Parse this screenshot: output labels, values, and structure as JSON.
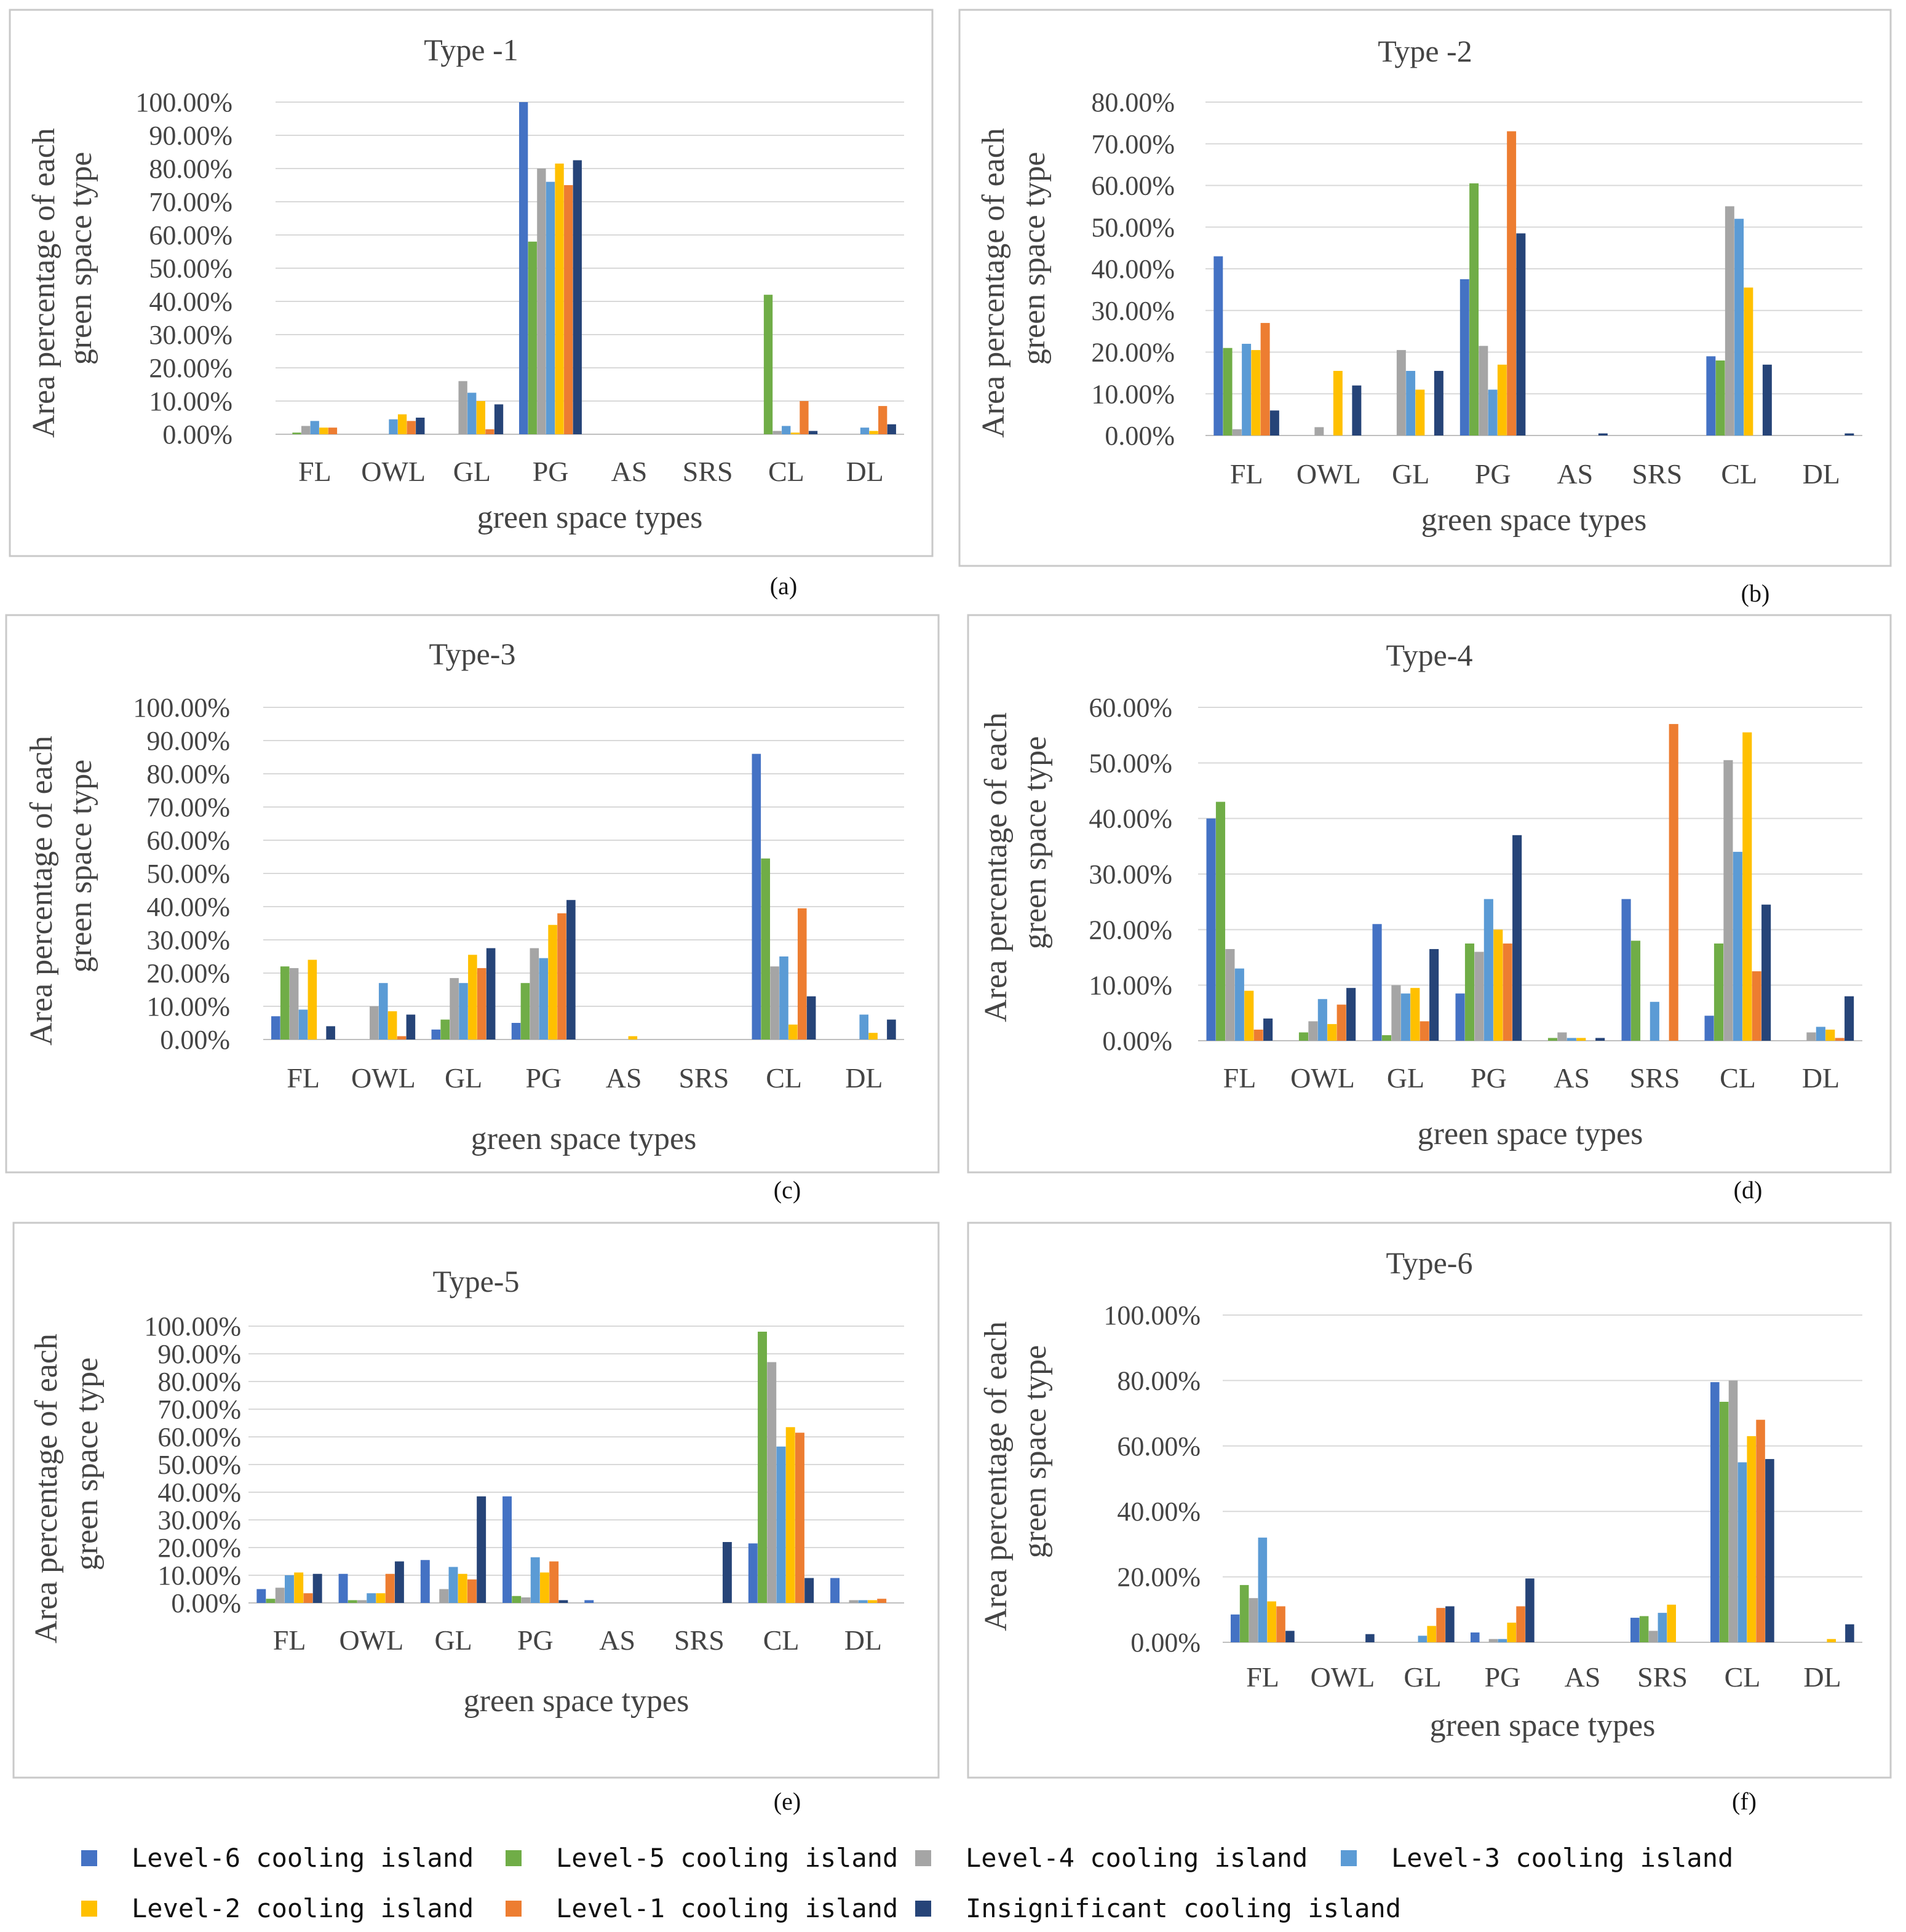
{
  "series": [
    {
      "name": "Level-6 cooling island",
      "color": "#4472C4"
    },
    {
      "name": "Level-5 cooling island",
      "color": "#70AD47"
    },
    {
      "name": "Level-4 cooling island",
      "color": "#A5A5A5"
    },
    {
      "name": "Level-3 cooling island",
      "color": "#5B9BD5"
    },
    {
      "name": "Level-2 cooling island",
      "color": "#FFC000"
    },
    {
      "name": "Level-1 cooling island",
      "color": "#ED7D31"
    },
    {
      "name": "Insignificant cooling island",
      "color": "#264478"
    }
  ],
  "chart_data": [
    {
      "type": "bar",
      "panel_label": "(a)",
      "title": "Type -1",
      "ylabel_line1": "Area percentage of each",
      "ylabel_line2": "green space type",
      "xlabel": "green space types",
      "categories": [
        "FL",
        "OWL",
        "GL",
        "PG",
        "AS",
        "SRS",
        "CL",
        "DL"
      ],
      "ylim": [
        0,
        100
      ],
      "yticks": [
        "0.00%",
        "10.00%",
        "20.00%",
        "30.00%",
        "40.00%",
        "50.00%",
        "60.00%",
        "70.00%",
        "80.00%",
        "90.00%",
        "100.00%"
      ],
      "values": [
        [
          0,
          0,
          0,
          100,
          0,
          0,
          0,
          0
        ],
        [
          0.5,
          0,
          0,
          58,
          0,
          0,
          42,
          0
        ],
        [
          2.5,
          0,
          16,
          80,
          0,
          0,
          1,
          0
        ],
        [
          4,
          4.5,
          12.5,
          76,
          0,
          0,
          2.5,
          2
        ],
        [
          2,
          6,
          10,
          81.5,
          0,
          0,
          0.5,
          1
        ],
        [
          2,
          4,
          1.5,
          75,
          0,
          0,
          10,
          8.5
        ],
        [
          0,
          5,
          9,
          82.5,
          0,
          0,
          1,
          3
        ]
      ]
    },
    {
      "type": "bar",
      "panel_label": "(b)",
      "title": "Type -2",
      "ylabel_line1": "Area percentage of each",
      "ylabel_line2": "green space type",
      "xlabel": "green space types",
      "categories": [
        "FL",
        "OWL",
        "GL",
        "PG",
        "AS",
        "SRS",
        "CL",
        "DL"
      ],
      "ylim": [
        0,
        80
      ],
      "yticks": [
        "0.00%",
        "10.00%",
        "20.00%",
        "30.00%",
        "40.00%",
        "50.00%",
        "60.00%",
        "70.00%",
        "80.00%"
      ],
      "values": [
        [
          43,
          0,
          0,
          37.5,
          0,
          0,
          19,
          0
        ],
        [
          21,
          0,
          0,
          60.5,
          0,
          0,
          18,
          0
        ],
        [
          1.5,
          2,
          20.5,
          21.5,
          0,
          0,
          55,
          0
        ],
        [
          22,
          0,
          15.5,
          11,
          0,
          0,
          52,
          0
        ],
        [
          20.5,
          15.5,
          11,
          17,
          0,
          0,
          35.5,
          0
        ],
        [
          27,
          0,
          0,
          73,
          0,
          0,
          0,
          0
        ],
        [
          6,
          12,
          15.5,
          48.5,
          0.5,
          0,
          17,
          0.5
        ]
      ]
    },
    {
      "type": "bar",
      "panel_label": "(c)",
      "title": "Type-3",
      "ylabel_line1": "Area percentage of each",
      "ylabel_line2": "green space type",
      "xlabel": "green space types",
      "categories": [
        "FL",
        "OWL",
        "GL",
        "PG",
        "AS",
        "SRS",
        "CL",
        "DL"
      ],
      "ylim": [
        0,
        100
      ],
      "yticks": [
        "0.00%",
        "10.00%",
        "20.00%",
        "30.00%",
        "40.00%",
        "50.00%",
        "60.00%",
        "70.00%",
        "80.00%",
        "90.00%",
        "100.00%"
      ],
      "values": [
        [
          7,
          0,
          3,
          5,
          0,
          0,
          86,
          0
        ],
        [
          22,
          0,
          6,
          17,
          0,
          0,
          54.5,
          0
        ],
        [
          21.5,
          10,
          18.5,
          27.5,
          0,
          0,
          22,
          0
        ],
        [
          9,
          17,
          17,
          24.5,
          0,
          0,
          25,
          7.5
        ],
        [
          24,
          8.5,
          25.5,
          34.5,
          1,
          0,
          4.5,
          2
        ],
        [
          0,
          1,
          21.5,
          38,
          0,
          0,
          39.5,
          0
        ],
        [
          4,
          7.5,
          27.5,
          42,
          0,
          0,
          13,
          6
        ]
      ]
    },
    {
      "type": "bar",
      "panel_label": "(d)",
      "title": "Type-4",
      "ylabel_line1": "Area percentage of each",
      "ylabel_line2": "green space type",
      "xlabel": "green space types",
      "categories": [
        "FL",
        "OWL",
        "GL",
        "PG",
        "AS",
        "SRS",
        "CL",
        "DL"
      ],
      "ylim": [
        0,
        60
      ],
      "yticks": [
        "0.00%",
        "10.00%",
        "20.00%",
        "30.00%",
        "40.00%",
        "50.00%",
        "60.00%"
      ],
      "values": [
        [
          40,
          0,
          21,
          8.5,
          0,
          25.5,
          4.5,
          0
        ],
        [
          43,
          1.5,
          1,
          17.5,
          0.5,
          18,
          17.5,
          0
        ],
        [
          16.5,
          3.5,
          10,
          16,
          1.5,
          0,
          50.5,
          1.5
        ],
        [
          13,
          7.5,
          8.5,
          25.5,
          0.5,
          7,
          34,
          2.5
        ],
        [
          9,
          3,
          9.5,
          20,
          0.5,
          0,
          55.5,
          2
        ],
        [
          2,
          6.5,
          3.5,
          17.5,
          0,
          57,
          12.5,
          0.5
        ],
        [
          4,
          9.5,
          16.5,
          37,
          0.5,
          0,
          24.5,
          8
        ]
      ]
    },
    {
      "type": "bar",
      "panel_label": "(e)",
      "title": "Type-5",
      "ylabel_line1": "Area percentage of each",
      "ylabel_line2": "green space type",
      "xlabel": "green space types",
      "categories": [
        "FL",
        "OWL",
        "GL",
        "PG",
        "AS",
        "SRS",
        "CL",
        "DL"
      ],
      "ylim": [
        0,
        100
      ],
      "yticks": [
        "0.00%",
        "10.00%",
        "20.00%",
        "30.00%",
        "40.00%",
        "50.00%",
        "60.00%",
        "70.00%",
        "80.00%",
        "90.00%",
        "100.00%"
      ],
      "values": [
        [
          5,
          10.5,
          15.5,
          38.5,
          1,
          0,
          21.5,
          9
        ],
        [
          1.5,
          1,
          0,
          2.5,
          0,
          0,
          98,
          0
        ],
        [
          5.5,
          1,
          5,
          2,
          0,
          0,
          87,
          1
        ],
        [
          10,
          3.5,
          13,
          16.5,
          0,
          0,
          56.5,
          1
        ],
        [
          11,
          3.5,
          10.5,
          11,
          0,
          0,
          63.5,
          1
        ],
        [
          3.5,
          10.5,
          8.5,
          15,
          0,
          0,
          61.5,
          1.5
        ],
        [
          10.5,
          15,
          38.5,
          1,
          0,
          22,
          9,
          0
        ]
      ]
    },
    {
      "type": "bar",
      "panel_label": "(f)",
      "title": "Type-6",
      "ylabel_line1": "Area percentage of each",
      "ylabel_line2": "green space type",
      "xlabel": "green space types",
      "categories": [
        "FL",
        "OWL",
        "GL",
        "PG",
        "AS",
        "SRS",
        "CL",
        "DL"
      ],
      "ylim": [
        0,
        100
      ],
      "yticks": [
        "0.00%",
        "20.00%",
        "40.00%",
        "60.00%",
        "80.00%",
        "100.00%"
      ],
      "values": [
        [
          8.5,
          0,
          0,
          3,
          0,
          7.5,
          79.5,
          0
        ],
        [
          17.5,
          0,
          0,
          0,
          0,
          8,
          73.5,
          0
        ],
        [
          13.5,
          0,
          0,
          1,
          0,
          3.5,
          80,
          0
        ],
        [
          32,
          0,
          2,
          1,
          0,
          9,
          55,
          0
        ],
        [
          12.5,
          0,
          5,
          6,
          0,
          11.5,
          63,
          1
        ],
        [
          11,
          0,
          10.5,
          11,
          0,
          0,
          68,
          0
        ],
        [
          3.5,
          2.5,
          11,
          19.5,
          0,
          0,
          56,
          5.5
        ]
      ]
    }
  ]
}
